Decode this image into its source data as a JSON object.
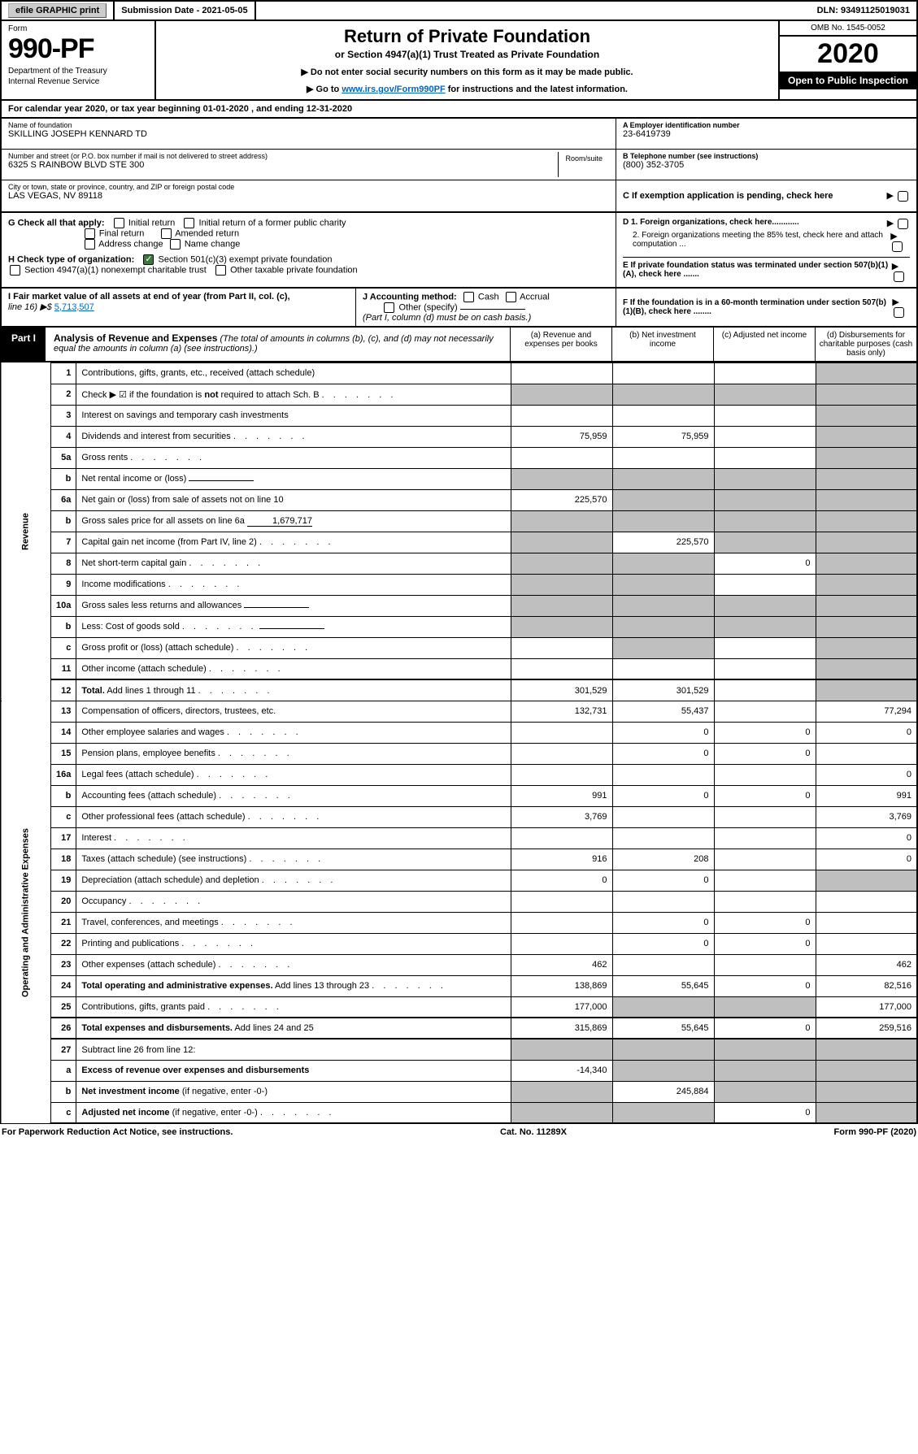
{
  "topbar": {
    "efile": "efile GRAPHIC print",
    "submission": "Submission Date - 2021-05-05",
    "dln": "DLN: 93491125019031"
  },
  "header": {
    "form_label": "Form",
    "form_number": "990-PF",
    "dept1": "Department of the Treasury",
    "dept2": "Internal Revenue Service",
    "title": "Return of Private Foundation",
    "subtitle": "or Section 4947(a)(1) Trust Treated as Private Foundation",
    "instr1": "▶ Do not enter social security numbers on this form as it may be made public.",
    "instr2_pre": "▶ Go to ",
    "instr2_link": "www.irs.gov/Form990PF",
    "instr2_post": " for instructions and the latest information.",
    "omb": "OMB No. 1545-0052",
    "year": "2020",
    "open": "Open to Public Inspection"
  },
  "calyear": "For calendar year 2020, or tax year beginning 01-01-2020                          , and ending 12-31-2020",
  "info": {
    "name_label": "Name of foundation",
    "name": "SKILLING JOSEPH KENNARD TD",
    "addr_label": "Number and street (or P.O. box number if mail is not delivered to street address)",
    "addr": "6325 S RAINBOW BLVD STE 300",
    "room_label": "Room/suite",
    "city_label": "City or town, state or province, country, and ZIP or foreign postal code",
    "city": "LAS VEGAS, NV  89118",
    "ein_label": "A Employer identification number",
    "ein": "23-6419739",
    "tel_label": "B Telephone number (see instructions)",
    "tel": "(800) 352-3705",
    "c_label": "C If exemption application is pending, check here"
  },
  "checks": {
    "g_label": "G Check all that apply:",
    "initial": "Initial return",
    "initial_former": "Initial return of a former public charity",
    "final": "Final return",
    "amended": "Amended return",
    "addr_change": "Address change",
    "name_change": "Name change",
    "h_label": "H Check type of organization:",
    "501c3": "Section 501(c)(3) exempt private foundation",
    "4947": "Section 4947(a)(1) nonexempt charitable trust",
    "other_tax": "Other taxable private foundation",
    "d1": "D 1. Foreign organizations, check here............",
    "d2": "2. Foreign organizations meeting the 85% test, check here and attach computation ...",
    "e": "E   If private foundation status was terminated under section 507(b)(1)(A), check here .......",
    "f": "F   If the foundation is in a 60-month termination under section 507(b)(1)(B), check here ........"
  },
  "fmv": {
    "i_label": "I Fair market value of all assets at end of year (from Part II, col. (c),",
    "i_line": "line 16) ▶$  ",
    "i_val": "5,713,507",
    "j_label": "J Accounting method:",
    "cash": "Cash",
    "accrual": "Accrual",
    "other_spec": "Other (specify)",
    "note": "(Part I, column (d) must be on cash basis.)"
  },
  "part1": {
    "tab": "Part I",
    "title_bold": "Analysis of Revenue and Expenses",
    "title_rest": " (The total of amounts in columns (b), (c), and (d) may not necessarily equal the amounts in column (a) (see instructions).)",
    "col_a": "(a)    Revenue and expenses per books",
    "col_b": "(b)   Net investment income",
    "col_c": "(c)   Adjusted net income",
    "col_d": "(d)   Disbursements for charitable purposes (cash basis only)"
  },
  "sides": {
    "revenue": "Revenue",
    "expenses": "Operating and Administrative Expenses"
  },
  "rows": [
    {
      "n": "1",
      "desc": "Contributions, gifts, grants, etc., received (attach schedule)",
      "a": "",
      "b": "",
      "c": "",
      "d": "",
      "ga": false,
      "gb": false,
      "gc": false,
      "gd": true
    },
    {
      "n": "2",
      "desc": "Check ▶ ☑ if the foundation is <b>not</b> required to attach Sch. B",
      "dots": true,
      "a": "",
      "b": "",
      "c": "",
      "d": "",
      "ga": true,
      "gb": true,
      "gc": true,
      "gd": true
    },
    {
      "n": "3",
      "desc": "Interest on savings and temporary cash investments",
      "a": "",
      "b": "",
      "c": "",
      "d": "",
      "ga": false,
      "gb": false,
      "gc": false,
      "gd": true
    },
    {
      "n": "4",
      "desc": "Dividends and interest from securities",
      "dots": true,
      "a": "75,959",
      "b": "75,959",
      "c": "",
      "d": "",
      "ga": false,
      "gb": false,
      "gc": false,
      "gd": true
    },
    {
      "n": "5a",
      "desc": "Gross rents",
      "dots": true,
      "a": "",
      "b": "",
      "c": "",
      "d": "",
      "ga": false,
      "gb": false,
      "gc": false,
      "gd": true
    },
    {
      "n": "b",
      "desc": "Net rental income or (loss)",
      "inline": "____________",
      "a": "",
      "b": "",
      "c": "",
      "d": "",
      "ga": true,
      "gb": true,
      "gc": true,
      "gd": true
    },
    {
      "n": "6a",
      "desc": "Net gain or (loss) from sale of assets not on line 10",
      "a": "225,570",
      "b": "",
      "c": "",
      "d": "",
      "ga": false,
      "gb": true,
      "gc": true,
      "gd": true
    },
    {
      "n": "b",
      "desc": "Gross sales price for all assets on line 6a",
      "inline": "1,679,717",
      "a": "",
      "b": "",
      "c": "",
      "d": "",
      "ga": true,
      "gb": true,
      "gc": true,
      "gd": true
    },
    {
      "n": "7",
      "desc": "Capital gain net income (from Part IV, line 2)",
      "dots": true,
      "a": "",
      "b": "225,570",
      "c": "",
      "d": "",
      "ga": true,
      "gb": false,
      "gc": true,
      "gd": true
    },
    {
      "n": "8",
      "desc": "Net short-term capital gain",
      "dots": true,
      "a": "",
      "b": "",
      "c": "0",
      "d": "",
      "ga": true,
      "gb": true,
      "gc": false,
      "gd": true
    },
    {
      "n": "9",
      "desc": "Income modifications",
      "dots": true,
      "a": "",
      "b": "",
      "c": "",
      "d": "",
      "ga": true,
      "gb": true,
      "gc": false,
      "gd": true
    },
    {
      "n": "10a",
      "desc": "Gross sales less returns and allowances",
      "inline": "______",
      "a": "",
      "b": "",
      "c": "",
      "d": "",
      "ga": true,
      "gb": true,
      "gc": true,
      "gd": true
    },
    {
      "n": "b",
      "desc": "Less: Cost of goods sold",
      "dots": true,
      "inline": "______",
      "a": "",
      "b": "",
      "c": "",
      "d": "",
      "ga": true,
      "gb": true,
      "gc": true,
      "gd": true
    },
    {
      "n": "c",
      "desc": "Gross profit or (loss) (attach schedule)",
      "dots": true,
      "a": "",
      "b": "",
      "c": "",
      "d": "",
      "ga": false,
      "gb": true,
      "gc": false,
      "gd": true
    },
    {
      "n": "11",
      "desc": "Other income (attach schedule)",
      "dots": true,
      "a": "",
      "b": "",
      "c": "",
      "d": "",
      "ga": false,
      "gb": false,
      "gc": false,
      "gd": true
    },
    {
      "n": "12",
      "desc": "<b>Total.</b> Add lines 1 through 11",
      "dots": true,
      "a": "301,529",
      "b": "301,529",
      "c": "",
      "d": "",
      "ga": false,
      "gb": false,
      "gc": false,
      "gd": true,
      "dark": true
    },
    {
      "n": "13",
      "desc": "Compensation of officers, directors, trustees, etc.",
      "a": "132,731",
      "b": "55,437",
      "c": "",
      "d": "77,294",
      "ga": false,
      "gb": false,
      "gc": false,
      "gd": false,
      "sec": "exp"
    },
    {
      "n": "14",
      "desc": "Other employee salaries and wages",
      "dots": true,
      "a": "",
      "b": "0",
      "c": "0",
      "d": "0",
      "ga": false,
      "gb": false,
      "gc": false,
      "gd": false
    },
    {
      "n": "15",
      "desc": "Pension plans, employee benefits",
      "dots": true,
      "a": "",
      "b": "0",
      "c": "0",
      "d": "",
      "ga": false,
      "gb": false,
      "gc": false,
      "gd": false
    },
    {
      "n": "16a",
      "desc": "Legal fees (attach schedule)",
      "dots": true,
      "a": "",
      "b": "",
      "c": "",
      "d": "0",
      "ga": false,
      "gb": false,
      "gc": false,
      "gd": false
    },
    {
      "n": "b",
      "desc": "Accounting fees (attach schedule)",
      "dots": true,
      "a": "991",
      "b": "0",
      "c": "0",
      "d": "991",
      "ga": false,
      "gb": false,
      "gc": false,
      "gd": false
    },
    {
      "n": "c",
      "desc": "Other professional fees (attach schedule)",
      "dots": true,
      "a": "3,769",
      "b": "",
      "c": "",
      "d": "3,769",
      "ga": false,
      "gb": false,
      "gc": false,
      "gd": false
    },
    {
      "n": "17",
      "desc": "Interest",
      "dots": true,
      "a": "",
      "b": "",
      "c": "",
      "d": "0",
      "ga": false,
      "gb": false,
      "gc": false,
      "gd": false
    },
    {
      "n": "18",
      "desc": "Taxes (attach schedule) (see instructions)",
      "dots": true,
      "a": "916",
      "b": "208",
      "c": "",
      "d": "0",
      "ga": false,
      "gb": false,
      "gc": false,
      "gd": false
    },
    {
      "n": "19",
      "desc": "Depreciation (attach schedule) and depletion",
      "dots": true,
      "a": "0",
      "b": "0",
      "c": "",
      "d": "",
      "ga": false,
      "gb": false,
      "gc": false,
      "gd": true
    },
    {
      "n": "20",
      "desc": "Occupancy",
      "dots": true,
      "a": "",
      "b": "",
      "c": "",
      "d": "",
      "ga": false,
      "gb": false,
      "gc": false,
      "gd": false
    },
    {
      "n": "21",
      "desc": "Travel, conferences, and meetings",
      "dots": true,
      "a": "",
      "b": "0",
      "c": "0",
      "d": "",
      "ga": false,
      "gb": false,
      "gc": false,
      "gd": false
    },
    {
      "n": "22",
      "desc": "Printing and publications",
      "dots": true,
      "a": "",
      "b": "0",
      "c": "0",
      "d": "",
      "ga": false,
      "gb": false,
      "gc": false,
      "gd": false
    },
    {
      "n": "23",
      "desc": "Other expenses (attach schedule)",
      "dots": true,
      "a": "462",
      "b": "",
      "c": "",
      "d": "462",
      "ga": false,
      "gb": false,
      "gc": false,
      "gd": false
    },
    {
      "n": "24",
      "desc": "<b>Total operating and administrative expenses.</b> Add lines 13 through 23",
      "dots": true,
      "a": "138,869",
      "b": "55,645",
      "c": "0",
      "d": "82,516",
      "ga": false,
      "gb": false,
      "gc": false,
      "gd": false
    },
    {
      "n": "25",
      "desc": "Contributions, gifts, grants paid",
      "dots": true,
      "a": "177,000",
      "b": "",
      "c": "",
      "d": "177,000",
      "ga": false,
      "gb": true,
      "gc": true,
      "gd": false
    },
    {
      "n": "26",
      "desc": "<b>Total expenses and disbursements.</b> Add lines 24 and 25",
      "a": "315,869",
      "b": "55,645",
      "c": "0",
      "d": "259,516",
      "ga": false,
      "gb": false,
      "gc": false,
      "gd": false,
      "dark": true
    },
    {
      "n": "27",
      "desc": "Subtract line 26 from line 12:",
      "a": "",
      "b": "",
      "c": "",
      "d": "",
      "ga": true,
      "gb": true,
      "gc": true,
      "gd": true,
      "dark": true
    },
    {
      "n": "a",
      "desc": "<b>Excess of revenue over expenses and disbursements</b>",
      "a": "-14,340",
      "b": "",
      "c": "",
      "d": "",
      "ga": false,
      "gb": true,
      "gc": true,
      "gd": true
    },
    {
      "n": "b",
      "desc": "<b>Net investment income</b> (if negative, enter -0-)",
      "a": "",
      "b": "245,884",
      "c": "",
      "d": "",
      "ga": true,
      "gb": false,
      "gc": true,
      "gd": true
    },
    {
      "n": "c",
      "desc": "<b>Adjusted net income</b> (if negative, enter -0-)",
      "dots": true,
      "a": "",
      "b": "",
      "c": "0",
      "d": "",
      "ga": true,
      "gb": true,
      "gc": false,
      "gd": true
    }
  ],
  "footer": {
    "left": "For Paperwork Reduction Act Notice, see instructions.",
    "mid": "Cat. No. 11289X",
    "right": "Form 990-PF (2020)"
  },
  "colors": {
    "grey": "#bfbfbf",
    "link": "#0066cc",
    "check_green": "#3a7a3a"
  }
}
